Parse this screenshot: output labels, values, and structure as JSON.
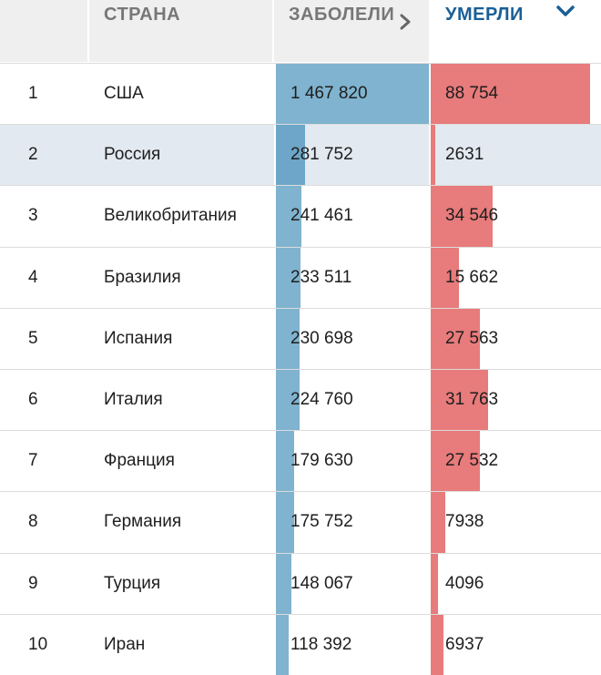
{
  "header": {
    "num_label": "",
    "country_label": "СТРАНА",
    "cases_label": "ЗАБОЛЕЛИ",
    "deaths_label": "УМЕРЛИ",
    "cases_icon": "chevron-right-icon",
    "deaths_icon": "chevron-down-icon",
    "active_sort": "deaths"
  },
  "colors": {
    "cases_bar": "#7fb3cf",
    "deaths_bar": "#e87b7b",
    "header_bg": "#efefef",
    "active_header_text": "#1a5f96",
    "highlight_row": "#e3e9f0"
  },
  "rows": [
    {
      "rank": "1",
      "country": "США",
      "cases": "1 467 820",
      "deaths": "88 754",
      "cases_fill": 1.0,
      "deaths_fill": 1.0
    },
    {
      "rank": "2",
      "country": "Россия",
      "cases": "281 752",
      "deaths": "2631",
      "cases_fill": 0.192,
      "deaths_fill": 0.03,
      "highlighted": true
    },
    {
      "rank": "3",
      "country": "Великобритания",
      "cases": "241 461",
      "deaths": "34 546",
      "cases_fill": 0.165,
      "deaths_fill": 0.389
    },
    {
      "rank": "4",
      "country": "Бразилия",
      "cases": "233 511",
      "deaths": "15 662",
      "cases_fill": 0.159,
      "deaths_fill": 0.176
    },
    {
      "rank": "5",
      "country": "Испания",
      "cases": "230 698",
      "deaths": "27 563",
      "cases_fill": 0.157,
      "deaths_fill": 0.311
    },
    {
      "rank": "6",
      "country": "Италия",
      "cases": "224 760",
      "deaths": "31 763",
      "cases_fill": 0.153,
      "deaths_fill": 0.358
    },
    {
      "rank": "7",
      "country": "Франция",
      "cases": "179 630",
      "deaths": "27 532",
      "cases_fill": 0.122,
      "deaths_fill": 0.31
    },
    {
      "rank": "8",
      "country": "Германия",
      "cases": "175 752",
      "deaths": "7938",
      "cases_fill": 0.12,
      "deaths_fill": 0.089
    },
    {
      "rank": "9",
      "country": "Турция",
      "cases": "148 067",
      "deaths": "4096",
      "cases_fill": 0.101,
      "deaths_fill": 0.046
    },
    {
      "rank": "10",
      "country": "Иран",
      "cases": "118 392",
      "deaths": "6937",
      "cases_fill": 0.081,
      "deaths_fill": 0.078
    }
  ]
}
